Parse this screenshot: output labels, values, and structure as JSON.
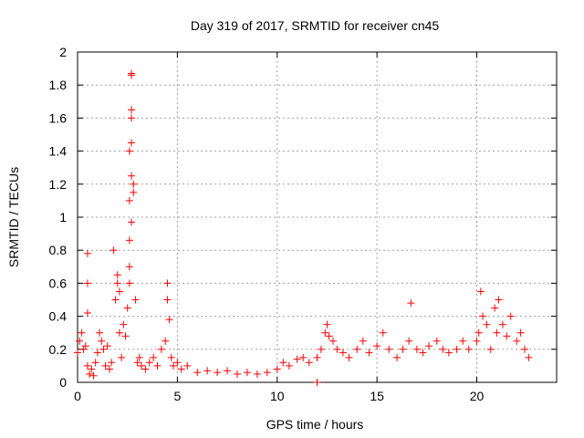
{
  "chart_data": {
    "type": "scatter",
    "title": "Day 319 of 2017, SRMTID for receiver cn45",
    "xlabel": "GPS time / hours",
    "ylabel": "SRMTID / TECUs",
    "xlim": [
      0,
      24
    ],
    "ylim": [
      0,
      2
    ],
    "xticks": [
      0,
      5,
      10,
      15,
      20
    ],
    "yticks": [
      0,
      0.2,
      0.4,
      0.6,
      0.8,
      1,
      1.2,
      1.4,
      1.6,
      1.8,
      2
    ],
    "xtick_labels": [
      "0",
      "5",
      "10",
      "15",
      "20"
    ],
    "ytick_labels": [
      "0",
      "0.2",
      "0.4",
      "0.6",
      "0.8",
      "1",
      "1.2",
      "1.4",
      "1.6",
      "1.8",
      "2"
    ],
    "grid": true,
    "marker": "+",
    "color": "#ff0000",
    "series": [
      {
        "name": "SRMTID",
        "x": [
          0.0,
          0.1,
          0.2,
          0.3,
          0.4,
          0.5,
          0.5,
          0.5,
          0.5,
          0.6,
          0.7,
          0.8,
          0.9,
          1.0,
          1.1,
          1.2,
          1.3,
          1.4,
          1.5,
          1.6,
          1.7,
          1.8,
          1.9,
          2.0,
          2.0,
          2.1,
          2.1,
          2.2,
          2.3,
          2.4,
          2.5,
          2.6,
          2.6,
          2.6,
          2.6,
          2.6,
          2.7,
          2.7,
          2.7,
          2.7,
          2.7,
          2.7,
          2.7,
          2.8,
          2.8,
          2.9,
          3.0,
          3.1,
          3.2,
          3.4,
          3.6,
          3.8,
          4.0,
          4.2,
          4.4,
          4.5,
          4.5,
          4.6,
          4.7,
          4.8,
          5.0,
          5.2,
          5.5,
          6.0,
          6.5,
          7.0,
          7.5,
          8.0,
          8.5,
          9.0,
          9.5,
          10.0,
          10.3,
          10.6,
          11.0,
          11.3,
          11.6,
          12.0,
          12.2,
          12.4,
          12.5,
          12.6,
          12.8,
          13.0,
          13.3,
          13.6,
          14.0,
          14.3,
          14.6,
          15.0,
          15.3,
          15.6,
          16.0,
          16.3,
          16.6,
          16.7,
          17.0,
          17.3,
          17.6,
          18.0,
          18.3,
          18.6,
          19.0,
          19.3,
          19.6,
          20.0,
          20.1,
          20.2,
          20.3,
          20.5,
          20.7,
          20.9,
          21.0,
          21.1,
          21.3,
          21.5,
          21.7,
          22.0,
          22.2,
          22.4,
          22.6,
          12.0
        ],
        "y": [
          0.18,
          0.25,
          0.3,
          0.2,
          0.22,
          0.1,
          0.42,
          0.6,
          0.78,
          0.05,
          0.08,
          0.04,
          0.12,
          0.18,
          0.3,
          0.25,
          0.2,
          0.1,
          0.22,
          0.08,
          0.12,
          0.8,
          0.5,
          0.6,
          0.65,
          0.55,
          0.3,
          0.15,
          0.35,
          0.28,
          0.45,
          0.6,
          0.7,
          0.86,
          1.1,
          1.4,
          1.87,
          1.86,
          1.6,
          1.65,
          1.45,
          1.25,
          0.97,
          1.2,
          1.15,
          0.5,
          0.12,
          0.15,
          0.1,
          0.08,
          0.12,
          0.15,
          0.1,
          0.2,
          0.25,
          0.5,
          0.6,
          0.38,
          0.15,
          0.1,
          0.12,
          0.08,
          0.1,
          0.06,
          0.07,
          0.06,
          0.07,
          0.05,
          0.06,
          0.05,
          0.06,
          0.08,
          0.12,
          0.1,
          0.14,
          0.15,
          0.12,
          0.15,
          0.2,
          0.3,
          0.35,
          0.28,
          0.25,
          0.2,
          0.18,
          0.15,
          0.2,
          0.25,
          0.18,
          0.22,
          0.3,
          0.2,
          0.15,
          0.2,
          0.25,
          0.48,
          0.2,
          0.18,
          0.22,
          0.25,
          0.2,
          0.18,
          0.2,
          0.25,
          0.2,
          0.25,
          0.3,
          0.55,
          0.4,
          0.35,
          0.2,
          0.45,
          0.3,
          0.5,
          0.35,
          0.28,
          0.4,
          0.25,
          0.3,
          0.2,
          0.15,
          0.0
        ]
      }
    ]
  }
}
